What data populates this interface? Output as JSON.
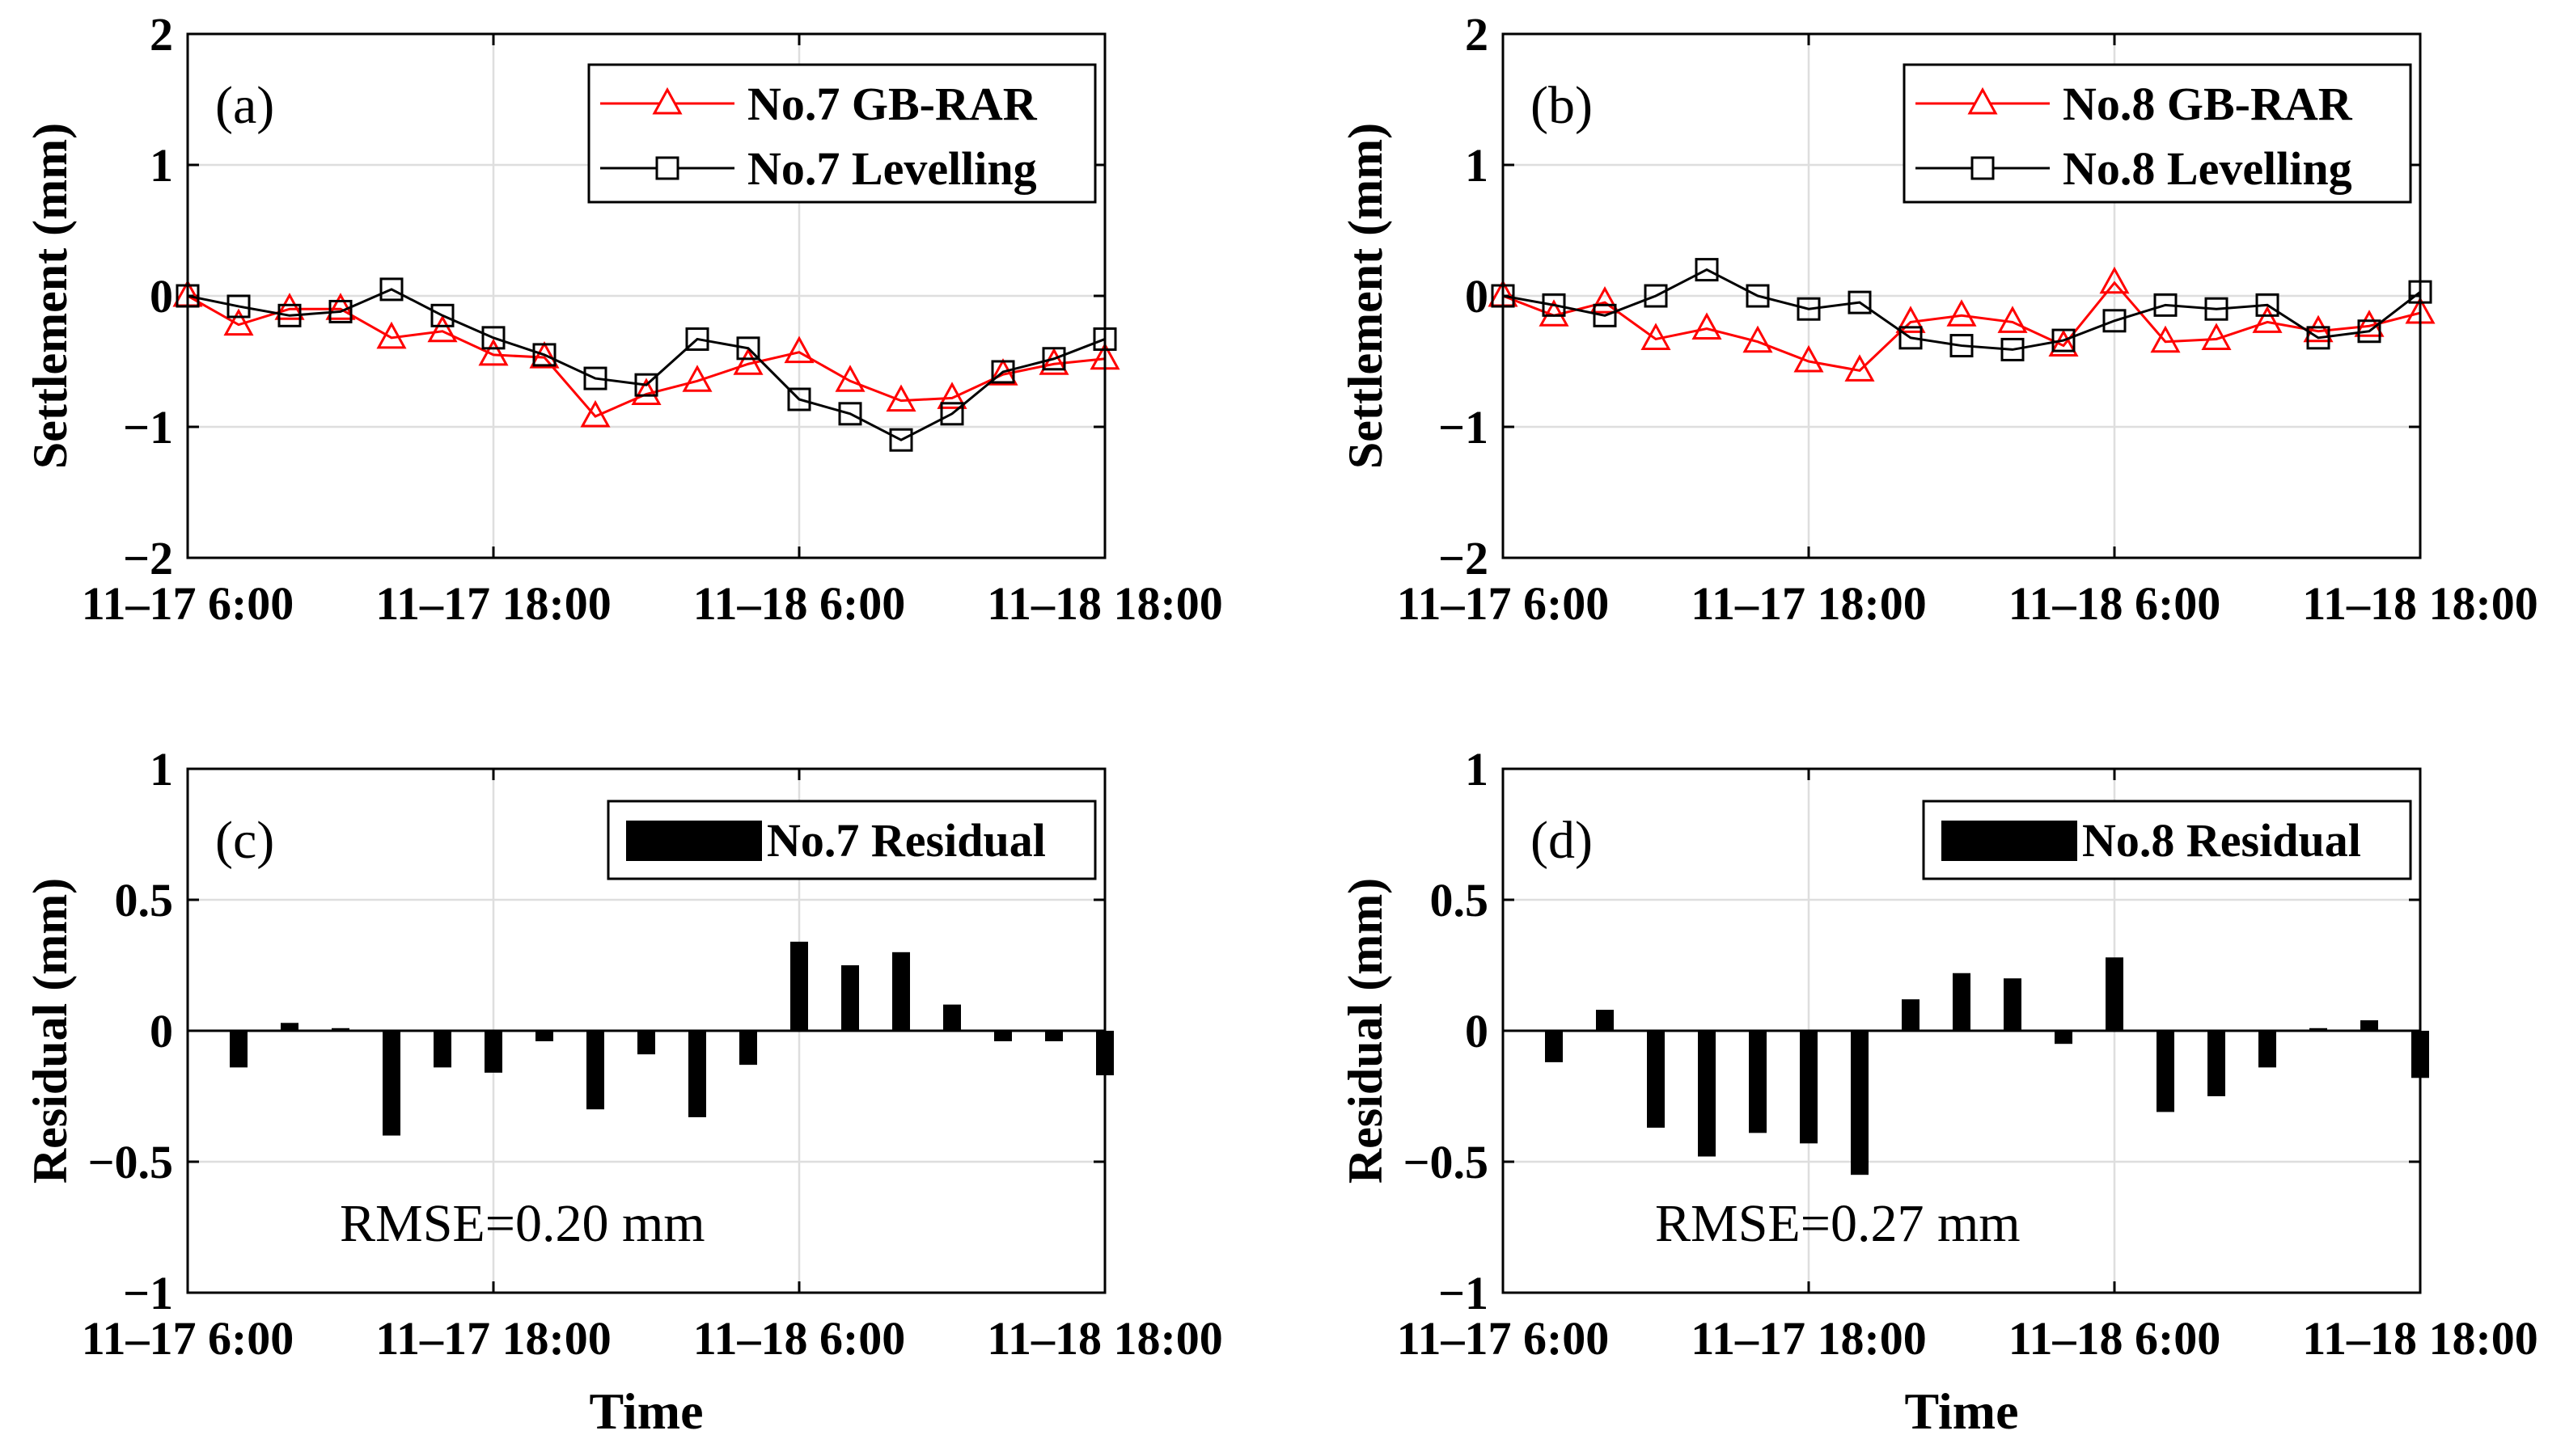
{
  "colors": {
    "gbrar": "#ff0000",
    "levelling": "#000000",
    "residual": "#000000",
    "grid": "#dedede"
  },
  "chart_data": [
    {
      "id": "a",
      "type": "line",
      "panel_label": "(a)",
      "ylabel": "Settlement (mm)",
      "xlabel": "",
      "ylim": [
        -2,
        2
      ],
      "yticks": [
        -2,
        -1,
        0,
        1,
        2
      ],
      "ytick_labels": [
        "−2",
        "−1",
        "0",
        "1",
        "2"
      ],
      "xlim": [
        0,
        36
      ],
      "xticks": [
        0,
        12,
        24,
        36
      ],
      "xtick_labels": [
        "11–17 6:00",
        "11–17 18:00",
        "11–18 6:00",
        "11–18 18:00"
      ],
      "grid": true,
      "legend_position": "top-right",
      "x": [
        0,
        2,
        4,
        6,
        8,
        10,
        12,
        14,
        16,
        18,
        20,
        22,
        24,
        26,
        28,
        30,
        32,
        34,
        36
      ],
      "series": [
        {
          "name": "No.7 GB-RAR",
          "marker": "triangle",
          "color": "#ff0000",
          "values": [
            0.0,
            -0.22,
            -0.1,
            -0.1,
            -0.32,
            -0.27,
            -0.45,
            -0.47,
            -0.92,
            -0.75,
            -0.65,
            -0.52,
            -0.43,
            -0.65,
            -0.8,
            -0.78,
            -0.6,
            -0.52,
            -0.48
          ]
        },
        {
          "name": "No.7 Levelling",
          "marker": "square",
          "color": "#000000",
          "values": [
            0.0,
            -0.08,
            -0.15,
            -0.12,
            0.05,
            -0.15,
            -0.32,
            -0.45,
            -0.63,
            -0.68,
            -0.33,
            -0.4,
            -0.79,
            -0.9,
            -1.1,
            -0.9,
            -0.58,
            -0.48,
            -0.33
          ]
        }
      ]
    },
    {
      "id": "b",
      "type": "line",
      "panel_label": "(b)",
      "ylabel": "Settlement (mm)",
      "xlabel": "",
      "ylim": [
        -2,
        2
      ],
      "yticks": [
        -2,
        -1,
        0,
        1,
        2
      ],
      "ytick_labels": [
        "−2",
        "−1",
        "0",
        "1",
        "2"
      ],
      "xlim": [
        0,
        36
      ],
      "xticks": [
        0,
        12,
        24,
        36
      ],
      "xtick_labels": [
        "11–17 6:00",
        "11–17 18:00",
        "11–18 6:00",
        "11–18 18:00"
      ],
      "grid": true,
      "legend_position": "top-right",
      "x": [
        0,
        2,
        4,
        6,
        8,
        10,
        12,
        14,
        16,
        18,
        20,
        22,
        24,
        26,
        28,
        30,
        32,
        34,
        36
      ],
      "series": [
        {
          "name": "No.8 GB-RAR",
          "marker": "triangle",
          "color": "#ff0000",
          "values": [
            0.0,
            -0.15,
            -0.05,
            -0.33,
            -0.25,
            -0.35,
            -0.5,
            -0.57,
            -0.2,
            -0.15,
            -0.2,
            -0.38,
            0.1,
            -0.35,
            -0.33,
            -0.2,
            -0.27,
            -0.23,
            -0.13
          ]
        },
        {
          "name": "No.8 Levelling",
          "marker": "square",
          "color": "#000000",
          "values": [
            0.0,
            -0.07,
            -0.15,
            0.0,
            0.2,
            0.0,
            -0.1,
            -0.05,
            -0.32,
            -0.38,
            -0.41,
            -0.34,
            -0.19,
            -0.07,
            -0.1,
            -0.07,
            -0.32,
            -0.27,
            0.03
          ]
        }
      ]
    },
    {
      "id": "c",
      "type": "bar",
      "panel_label": "(c)",
      "ylabel": "Residual (mm)",
      "xlabel": "Time",
      "ylim": [
        -1,
        1
      ],
      "yticks": [
        -1,
        -0.5,
        0,
        0.5,
        1
      ],
      "ytick_labels": [
        "−1",
        "−0.5",
        "0",
        "0.5",
        "1"
      ],
      "xlim": [
        0,
        36
      ],
      "xticks": [
        0,
        12,
        24,
        36
      ],
      "xtick_labels": [
        "11–17 6:00",
        "11–17 18:00",
        "11–18 6:00",
        "11–18 18:00"
      ],
      "grid": true,
      "legend_position": "top-right",
      "annotation": "RMSE=0.20 mm",
      "x": [
        2,
        4,
        6,
        8,
        10,
        12,
        14,
        16,
        18,
        20,
        22,
        24,
        26,
        28,
        30,
        32,
        34,
        36
      ],
      "series": [
        {
          "name": "No.7 Residual",
          "color": "#000000",
          "values": [
            -0.14,
            0.03,
            0.01,
            -0.4,
            -0.14,
            -0.16,
            -0.04,
            -0.3,
            -0.09,
            -0.33,
            -0.13,
            0.34,
            0.25,
            0.3,
            0.1,
            -0.04,
            -0.04,
            -0.17
          ]
        }
      ]
    },
    {
      "id": "d",
      "type": "bar",
      "panel_label": "(d)",
      "ylabel": "Residual (mm)",
      "xlabel": "Time",
      "ylim": [
        -1,
        1
      ],
      "yticks": [
        -1,
        -0.5,
        0,
        0.5,
        1
      ],
      "ytick_labels": [
        "−1",
        "−0.5",
        "0",
        "0.5",
        "1"
      ],
      "xlim": [
        0,
        36
      ],
      "xticks": [
        0,
        12,
        24,
        36
      ],
      "xtick_labels": [
        "11–17 6:00",
        "11–17 18:00",
        "11–18 6:00",
        "11–18 18:00"
      ],
      "grid": true,
      "legend_position": "top-right",
      "annotation": "RMSE=0.27 mm",
      "x": [
        2,
        4,
        6,
        8,
        10,
        12,
        14,
        16,
        18,
        20,
        22,
        24,
        26,
        28,
        30,
        32,
        34,
        36
      ],
      "series": [
        {
          "name": "No.8 Residual",
          "color": "#000000",
          "values": [
            -0.12,
            0.08,
            -0.37,
            -0.48,
            -0.39,
            -0.43,
            -0.55,
            0.12,
            0.22,
            0.2,
            -0.05,
            0.28,
            -0.31,
            -0.25,
            -0.14,
            0.01,
            0.04,
            -0.18
          ]
        }
      ]
    }
  ]
}
